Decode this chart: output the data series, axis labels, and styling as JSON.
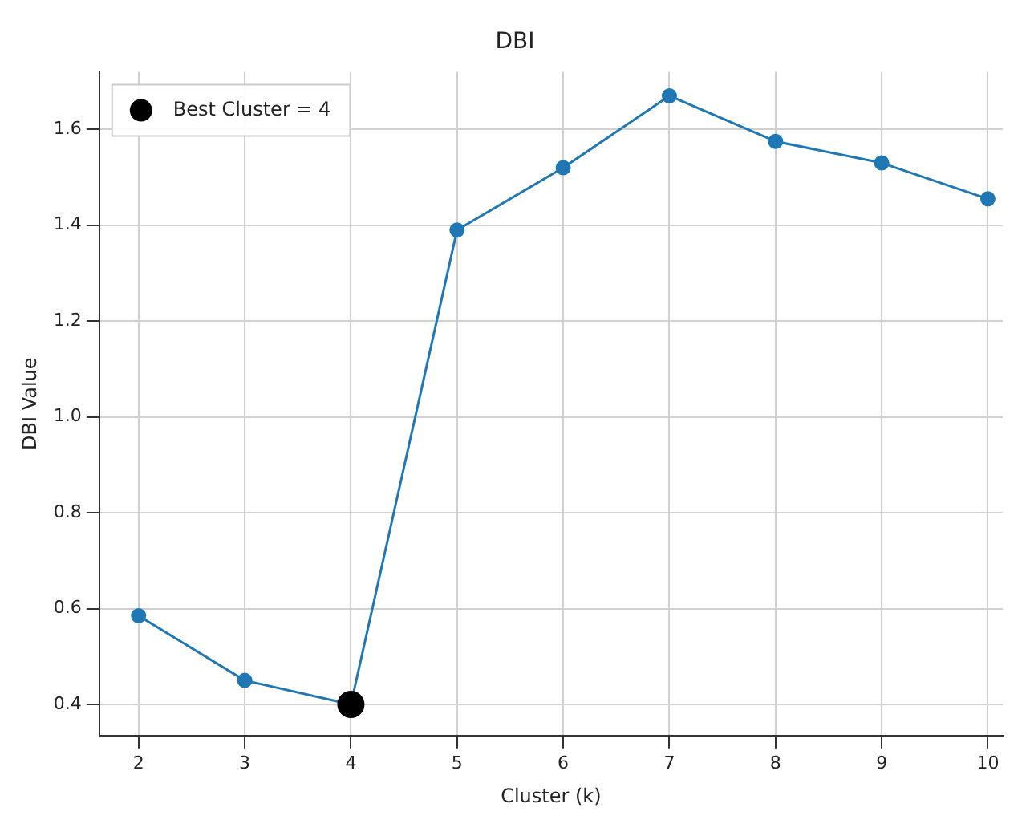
{
  "chart_data": {
    "type": "line",
    "title": "DBI",
    "xlabel": "Cluster (k)",
    "ylabel": "DBI Value",
    "x": [
      2,
      3,
      4,
      5,
      6,
      7,
      8,
      9,
      10
    ],
    "series": [
      {
        "color": "#1f77b4",
        "values": [
          0.585,
          0.45,
          0.4,
          1.39,
          1.52,
          1.67,
          1.575,
          1.53,
          1.455
        ]
      },
      {
        "type": "scatter",
        "name": "Best Cluster = 4",
        "color": "#000000",
        "x": [
          4
        ],
        "values": [
          0.4
        ]
      }
    ],
    "xlim": [
      1.63,
      10.14
    ],
    "xticks": [
      2,
      3,
      4,
      5,
      6,
      7,
      8,
      9,
      10
    ],
    "ylim": [
      0.335,
      1.72
    ],
    "yticks": [
      0.4,
      0.6,
      0.8,
      {
        "value": 1.0,
        "label": "1.0"
      },
      1.2,
      1.4,
      1.6
    ],
    "grid": true,
    "legend": "top left",
    "marker": "circle",
    "line_style": "solid"
  }
}
